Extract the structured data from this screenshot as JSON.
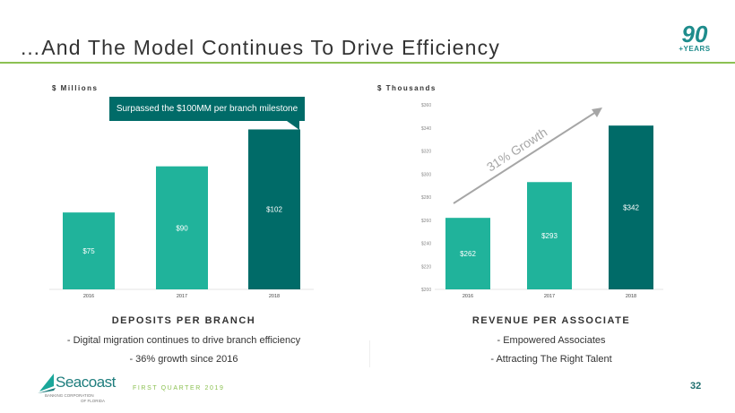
{
  "header": {
    "title": "…And The Model Continues To Drive Efficiency",
    "logo_number": "90",
    "logo_text": "+YEARS"
  },
  "colors": {
    "light_bar": "#20b39b",
    "dark_bar": "#006b68",
    "rule": "#8cc152"
  },
  "chart_data": [
    {
      "type": "bar",
      "title": "DEPOSITS PER BRANCH",
      "ylabel": "$ Millions",
      "categories": [
        "2016",
        "2017",
        "2018"
      ],
      "values": [
        75,
        90,
        102
      ],
      "labels": [
        "$75",
        "$90",
        "$102"
      ],
      "ylim": [
        50,
        110
      ],
      "highlight": [
        false,
        false,
        true
      ],
      "annotation": "Surpassed the $100MM  per branch milestone"
    },
    {
      "type": "bar",
      "title": "REVENUE PER ASSOCIATE",
      "ylabel": "$ Thousands",
      "categories": [
        "2016",
        "2017",
        "2018"
      ],
      "values": [
        262,
        293,
        342
      ],
      "labels": [
        "$262",
        "$293",
        "$342"
      ],
      "ylim": [
        200,
        360
      ],
      "yticks": [
        "$200",
        "$220",
        "$240",
        "$260",
        "$280",
        "$300",
        "$320",
        "$340",
        "$360"
      ],
      "highlight": [
        false,
        false,
        true
      ],
      "annotation": "31% Growth"
    }
  ],
  "left_bullets": [
    "-   Digital migration continues to drive branch efficiency",
    "-   36% growth since 2016"
  ],
  "right_bullets": [
    "-   Empowered Associates",
    "-   Attracting The Right Talent"
  ],
  "footer": {
    "brand": "Seacoast",
    "brand_sub1": "BANKING CORPORATION",
    "brand_sub2": "OF FLORIDA",
    "quarter": "FIRST QUARTER 2019",
    "page": "32"
  }
}
